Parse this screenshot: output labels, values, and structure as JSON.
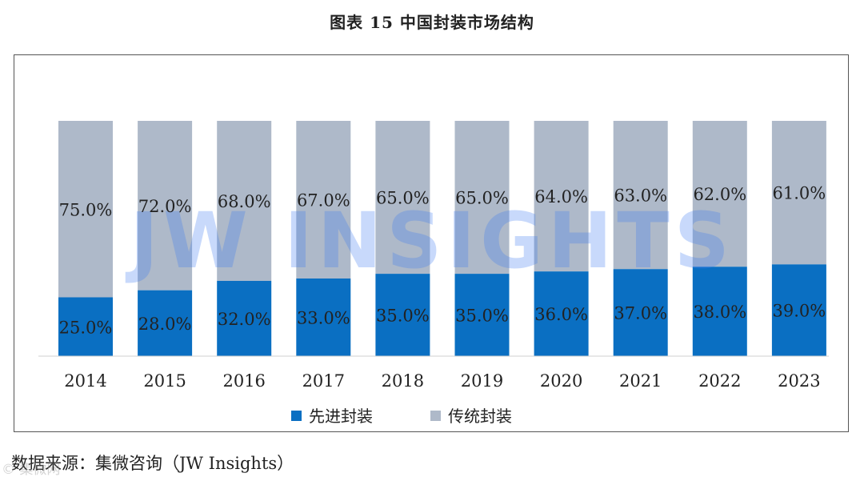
{
  "title": "图表 15 中国封装市场结构",
  "watermark": "JW INSIGHTS",
  "source": "数据来源：集微咨询（JW Insights）",
  "corner_mark": "© 集微网",
  "colors": {
    "advanced": "#0a6fc2",
    "traditional": "#aeb9c9",
    "watermark": "#3c7bf2"
  },
  "chart_data": {
    "type": "bar",
    "stacked": true,
    "percent": true,
    "categories": [
      "2014",
      "2015",
      "2016",
      "2017",
      "2018",
      "2019",
      "2020",
      "2021",
      "2022",
      "2023"
    ],
    "series": [
      {
        "name": "先进封装",
        "values": [
          25.0,
          28.0,
          32.0,
          33.0,
          35.0,
          35.0,
          36.0,
          37.0,
          38.0,
          39.0
        ]
      },
      {
        "name": "传统封装",
        "values": [
          75.0,
          72.0,
          68.0,
          67.0,
          65.0,
          65.0,
          64.0,
          63.0,
          62.0,
          61.0
        ]
      }
    ],
    "labels": {
      "advanced": [
        "25.0%",
        "28.0%",
        "32.0%",
        "33.0%",
        "35.0%",
        "35.0%",
        "36.0%",
        "37.0%",
        "38.0%",
        "39.0%"
      ],
      "traditional": [
        "75.0%",
        "72.0%",
        "68.0%",
        "67.0%",
        "65.0%",
        "65.0%",
        "64.0%",
        "63.0%",
        "62.0%",
        "61.0%"
      ]
    },
    "ylim": [
      0,
      100
    ],
    "grid": false,
    "legend": "bottom"
  }
}
